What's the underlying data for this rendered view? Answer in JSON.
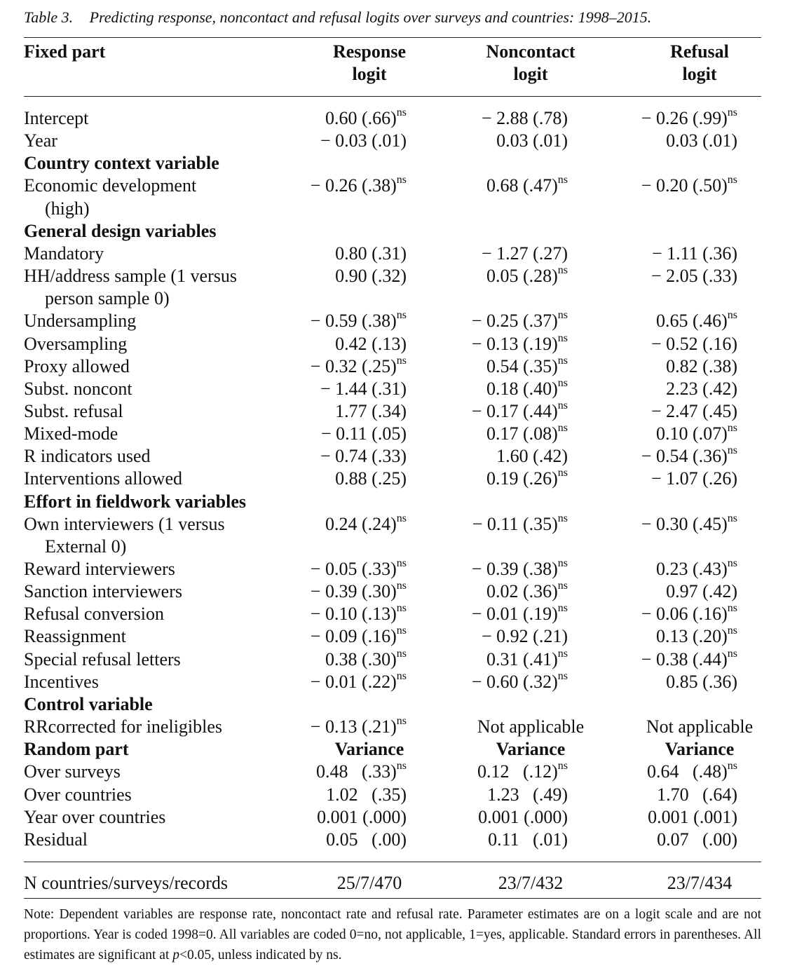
{
  "caption": {
    "label": "Table 3.",
    "title": "Predicting response, noncontact and refusal logits over surveys and countries: 1998–2015."
  },
  "header": {
    "fixed_part": "Fixed part",
    "col1_line1": "Response",
    "col1_line2": "logit",
    "col2_line1": "Noncontact",
    "col2_line2": "logit",
    "col3_line1": "Refusal",
    "col3_line2": "logit"
  },
  "rows": [
    {
      "label": "Intercept",
      "v1": "0.60 (.66)",
      "s1": "ns",
      "v2": "− 2.88 (.78)",
      "s2": "",
      "v3": "− 0.26 (.99)",
      "s3": "ns"
    },
    {
      "label": "Year",
      "v1": "− 0.03 (.01)",
      "s1": "",
      "v2": "0.03 (.01)",
      "s2": "",
      "v3": "0.03 (.01)",
      "s3": ""
    },
    {
      "section": "Country context variable"
    },
    {
      "label": "Economic development",
      "cont": "(high)",
      "v1": "− 0.26 (.38)",
      "s1": "ns",
      "v2": "0.68 (.47)",
      "s2": "ns",
      "v3": "− 0.20 (.50)",
      "s3": "ns"
    },
    {
      "section": "General design variables"
    },
    {
      "label": "Mandatory",
      "v1": "0.80 (.31)",
      "s1": "",
      "v2": "− 1.27 (.27)",
      "s2": "",
      "v3": "− 1.11 (.36)",
      "s3": ""
    },
    {
      "label": "HH/address sample (1 versus",
      "cont": "person sample 0)",
      "v1": "0.90 (.32)",
      "s1": "",
      "v2": "0.05 (.28)",
      "s2": "ns",
      "v3": "− 2.05 (.33)",
      "s3": ""
    },
    {
      "label": "Undersampling",
      "v1": "− 0.59 (.38)",
      "s1": "ns",
      "v2": "− 0.25 (.37)",
      "s2": "ns",
      "v3": "0.65 (.46)",
      "s3": "ns"
    },
    {
      "label": "Oversampling",
      "v1": "0.42 (.13)",
      "s1": "",
      "v2": "− 0.13 (.19)",
      "s2": "ns",
      "v3": "− 0.52 (.16)",
      "s3": ""
    },
    {
      "label": "Proxy allowed",
      "v1": "− 0.32 (.25)",
      "s1": "ns",
      "v2": "0.54 (.35)",
      "s2": "ns",
      "v3": "0.82 (.38)",
      "s3": ""
    },
    {
      "label": "Subst. noncont",
      "v1": "− 1.44 (.31)",
      "s1": "",
      "v2": "0.18 (.40)",
      "s2": "ns",
      "v3": "2.23 (.42)",
      "s3": ""
    },
    {
      "label": "Subst. refusal",
      "v1": "1.77 (.34)",
      "s1": "",
      "v2": "− 0.17 (.44)",
      "s2": "ns",
      "v3": "− 2.47 (.45)",
      "s3": ""
    },
    {
      "label": "Mixed-mode",
      "v1": "− 0.11 (.05)",
      "s1": "",
      "v2": "0.17 (.08)",
      "s2": "ns",
      "v3": "0.10 (.07)",
      "s3": "ns"
    },
    {
      "label": "R indicators used",
      "v1": "− 0.74 (.33)",
      "s1": "",
      "v2": "1.60 (.42)",
      "s2": "",
      "v3": "− 0.54 (.36)",
      "s3": "ns"
    },
    {
      "label": "Interventions allowed",
      "v1": "0.88 (.25)",
      "s1": "",
      "v2": "0.19 (.26)",
      "s2": "ns",
      "v3": "− 1.07 (.26)",
      "s3": ""
    },
    {
      "section": "Effort in fieldwork variables"
    },
    {
      "label": "Own interviewers (1 versus",
      "cont": "External 0)",
      "v1": "0.24 (.24)",
      "s1": "ns",
      "v2": "− 0.11 (.35)",
      "s2": "ns",
      "v3": "− 0.30 (.45)",
      "s3": "ns"
    },
    {
      "label": "Reward interviewers",
      "v1": "− 0.05 (.33)",
      "s1": "ns",
      "v2": "− 0.39 (.38)",
      "s2": "ns",
      "v3": "0.23 (.43)",
      "s3": "ns"
    },
    {
      "label": "Sanction interviewers",
      "v1": "− 0.39 (.30)",
      "s1": "ns",
      "v2": "0.02 (.36)",
      "s2": "ns",
      "v3": "0.97 (.42)",
      "s3": ""
    },
    {
      "label": "Refusal conversion",
      "v1": "− 0.10 (.13)",
      "s1": "ns",
      "v2": "− 0.01 (.19)",
      "s2": "ns",
      "v3": "− 0.06 (.16)",
      "s3": "ns"
    },
    {
      "label": "Reassignment",
      "v1": "− 0.09 (.16)",
      "s1": "ns",
      "v2": "− 0.92 (.21)",
      "s2": "",
      "v3": "0.13 (.20)",
      "s3": "ns"
    },
    {
      "label": "Special refusal letters",
      "v1": "0.38 (.30)",
      "s1": "ns",
      "v2": "0.31 (.41)",
      "s2": "ns",
      "v3": "− 0.38 (.44)",
      "s3": "ns"
    },
    {
      "label": "Incentives",
      "v1": "− 0.01 (.22)",
      "s1": "ns",
      "v2": "− 0.60 (.32)",
      "s2": "ns",
      "v3": "0.85 (.36)",
      "s3": ""
    },
    {
      "section": "Control variable"
    },
    {
      "label": "RRcorrected for ineligibles",
      "v1": "− 0.13 (.21)",
      "s1": "ns",
      "na2": "Not applicable",
      "na3": "Not applicable"
    },
    {
      "section": "Random part",
      "h1": "Variance",
      "h2": "Variance",
      "h3": "Variance"
    },
    {
      "label": "Over surveys",
      "v1": "0.48  (.33)",
      "s1": "ns",
      "v2": "0.12  (.12)",
      "s2": "ns",
      "v3": "0.64  (.48)",
      "s3": "ns"
    },
    {
      "label": "Over countries",
      "v1": "1.02  (.35)",
      "s1": "",
      "v2": "1.23  (.49)",
      "s2": "",
      "v3": "1.70  (.64)",
      "s3": ""
    },
    {
      "label": "Year over countries",
      "v1": "0.001 (.000)",
      "s1": "",
      "v2": "0.001 (.000)",
      "s2": "",
      "v3": "0.001 (.001)",
      "s3": ""
    },
    {
      "label": "Residual",
      "v1": "0.05  (.00)",
      "s1": "",
      "v2": "0.11  (.01)",
      "s2": "",
      "v3": "0.07  (.00)",
      "s3": ""
    }
  ],
  "n_row": {
    "label": "N countries/surveys/records",
    "v1": "25/7/470",
    "v2": "23/7/432",
    "v3": "23/7/434"
  },
  "note": {
    "text_before_p": "Note: Dependent variables are response rate, noncontact rate and refusal rate. Parameter estimates are on a logit scale and are not proportions. Year is coded 1998=0. All variables are coded 0=no, not applicable, 1=yes, applicable. Standard errors in parentheses. All estimates are significant at ",
    "p": "p",
    "text_after_p": "<0.05, unless indicated by ns."
  }
}
